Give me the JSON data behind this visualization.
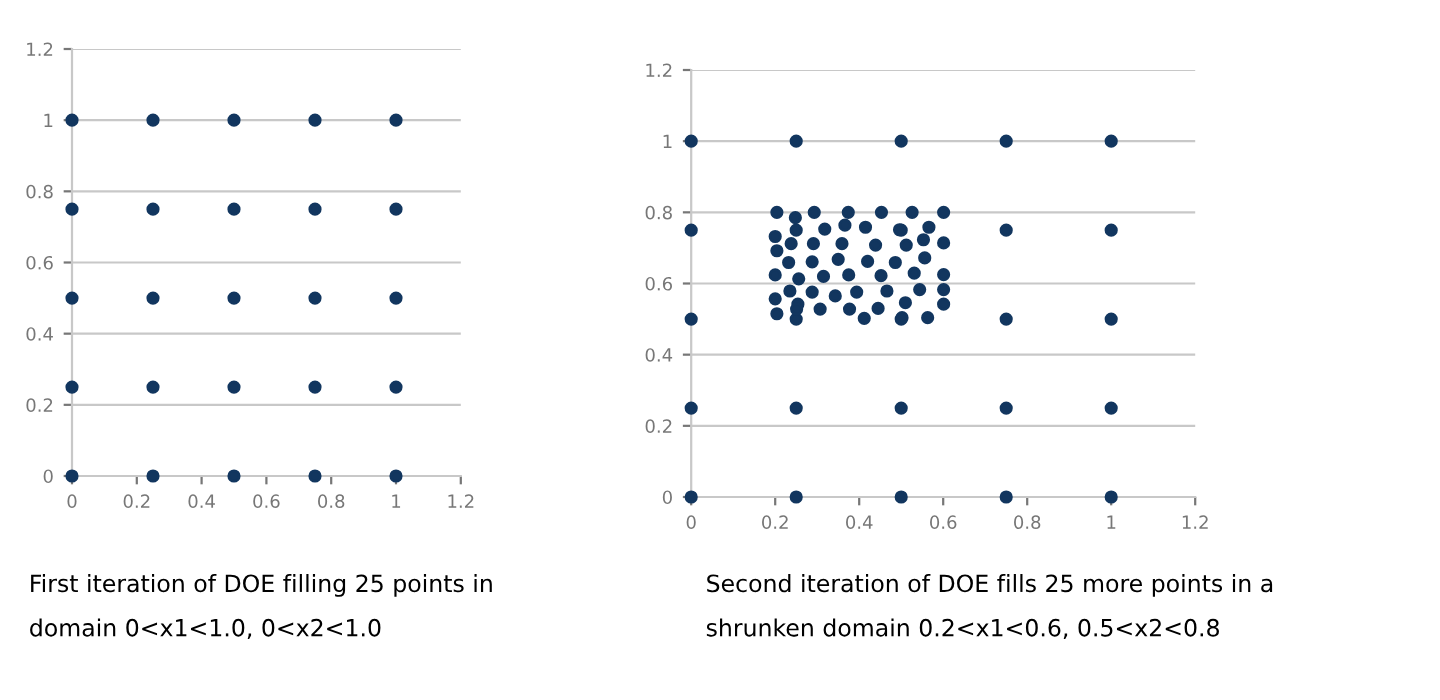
{
  "chart_data": [
    {
      "type": "scatter",
      "x": [
        0,
        0.25,
        0.5,
        0.75,
        1,
        0,
        0.25,
        0.5,
        0.75,
        1,
        0,
        0.25,
        0.5,
        0.75,
        1,
        0,
        0.25,
        0.5,
        0.75,
        1,
        0,
        0.25,
        0.5,
        0.75,
        1
      ],
      "values": [
        0,
        0,
        0,
        0,
        0,
        0.25,
        0.25,
        0.25,
        0.25,
        0.25,
        0.5,
        0.5,
        0.5,
        0.5,
        0.5,
        0.75,
        0.75,
        0.75,
        0.75,
        0.75,
        1,
        1,
        1,
        1,
        1
      ],
      "color": "#12365f",
      "marker": "circle",
      "xlim": [
        0,
        1.2
      ],
      "ylim": [
        0,
        1.2
      ],
      "xticks": [
        0,
        0.2,
        0.4,
        0.6,
        0.8,
        1,
        1.2
      ],
      "yticks": [
        0,
        0.2,
        0.4,
        0.6,
        0.8,
        1,
        1.2
      ],
      "grid": "y",
      "annotations": [
        "First iteration of DOE filling 25 points in\ndomain 0<x1<1.0, 0<x2<1.0"
      ]
    },
    {
      "type": "scatter",
      "x": [
        0,
        0.25,
        0.5,
        0.75,
        1,
        0,
        0.25,
        0.5,
        0.75,
        1,
        0,
        0.25,
        0.5,
        0.75,
        1,
        0,
        0.25,
        0.5,
        0.75,
        1,
        0,
        0.25,
        0.5,
        0.75,
        1,
        0.204,
        0.293,
        0.374,
        0.453,
        0.526,
        0.601,
        0.248,
        0.318,
        0.366,
        0.415,
        0.496,
        0.566,
        0.2,
        0.238,
        0.291,
        0.359,
        0.439,
        0.512,
        0.553,
        0.601,
        0.204,
        0.232,
        0.288,
        0.35,
        0.42,
        0.486,
        0.556,
        0.2,
        0.256,
        0.315,
        0.375,
        0.452,
        0.531,
        0.601,
        0.235,
        0.288,
        0.343,
        0.394,
        0.466,
        0.544,
        0.601,
        0.2,
        0.254,
        0.51,
        0.601,
        0.204,
        0.251,
        0.307,
        0.377,
        0.412,
        0.445,
        0.502,
        0.563
      ],
      "values": [
        0,
        0,
        0,
        0,
        0,
        0.25,
        0.25,
        0.25,
        0.25,
        0.25,
        0.5,
        0.5,
        0.5,
        0.5,
        0.5,
        0.75,
        0.75,
        0.75,
        0.75,
        0.75,
        1,
        1,
        1,
        1,
        1,
        0.8,
        0.8,
        0.8,
        0.8,
        0.8,
        0.8,
        0.785,
        0.753,
        0.764,
        0.758,
        0.751,
        0.758,
        0.732,
        0.712,
        0.712,
        0.712,
        0.708,
        0.708,
        0.723,
        0.714,
        0.692,
        0.659,
        0.661,
        0.668,
        0.662,
        0.659,
        0.672,
        0.624,
        0.613,
        0.62,
        0.624,
        0.622,
        0.629,
        0.625,
        0.579,
        0.576,
        0.565,
        0.576,
        0.579,
        0.583,
        0.583,
        0.557,
        0.542,
        0.546,
        0.542,
        0.515,
        0.528,
        0.528,
        0.528,
        0.502,
        0.53,
        0.504,
        0.504
      ],
      "color": "#12365f",
      "marker": "circle",
      "xlim": [
        0,
        1.2
      ],
      "ylim": [
        0,
        1.2
      ],
      "xticks": [
        0,
        0.2,
        0.4,
        0.6,
        0.8,
        1,
        1.2
      ],
      "yticks": [
        0,
        0.2,
        0.4,
        0.6,
        0.8,
        1,
        1.2
      ],
      "grid": "y",
      "annotations": [
        "Second iteration of DOE fills 25 more points in a\nshrunken domain 0.2<x1<0.6, 0.5<x2<0.8"
      ]
    }
  ]
}
